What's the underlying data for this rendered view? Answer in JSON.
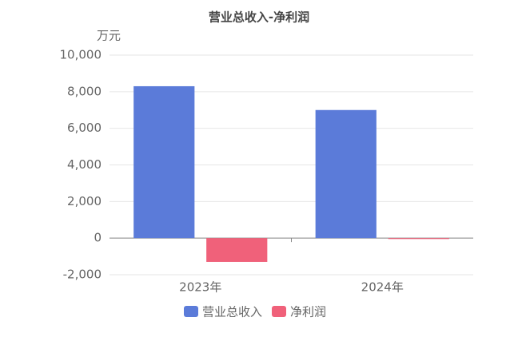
{
  "chart_data": {
    "type": "bar",
    "title": "营业总收入-净利润",
    "y_unit": "万元",
    "categories": [
      "2023年",
      "2024年"
    ],
    "series": [
      {
        "name": "营业总收入",
        "color": "#5b7bd9",
        "values": [
          8300,
          7000
        ]
      },
      {
        "name": "净利润",
        "color": "#f0617a",
        "values": [
          -1300,
          -50
        ]
      }
    ],
    "ylim": [
      -2000,
      10000
    ],
    "yticks": [
      {
        "value": -2000,
        "label": "-2,000"
      },
      0,
      {
        "value": 2000,
        "label": "2,000"
      },
      {
        "value": 4000,
        "label": "4,000"
      },
      {
        "value": 6000,
        "label": "6,000"
      },
      {
        "value": 8000,
        "label": "8,000"
      },
      {
        "value": 10000,
        "label": "10,000"
      }
    ],
    "grid": true,
    "legend": "bottom"
  }
}
